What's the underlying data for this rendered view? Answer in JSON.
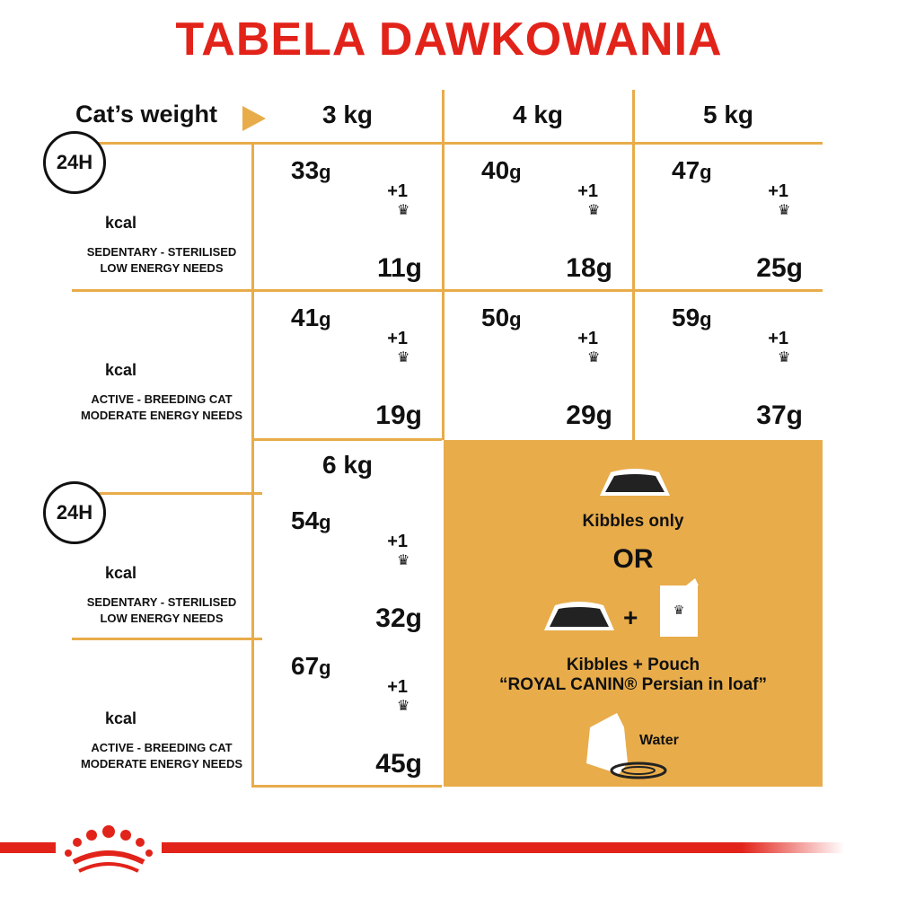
{
  "title": "TABELA DAWKOWANIA",
  "weight_label": "Cat’s weight",
  "weights_top": [
    "3 kg",
    "4 kg",
    "5 kg"
  ],
  "weights_bottom": [
    "6 kg"
  ],
  "activity": {
    "sedentary": {
      "line1": "SEDENTARY - STERILISED",
      "line2": "LOW ENERGY NEEDS",
      "kcal": "kcal",
      "clock": "24H"
    },
    "active": {
      "line1": "ACTIVE - BREEDING CAT",
      "line2": "MODERATE ENERGY NEEDS",
      "kcal": "kcal"
    }
  },
  "plus_one": "+1",
  "unit": "g",
  "rows": [
    {
      "type": "sedentary",
      "cells": [
        {
          "kibbles": "33",
          "mixed": "11g"
        },
        {
          "kibbles": "40",
          "mixed": "18g"
        },
        {
          "kibbles": "47",
          "mixed": "25g"
        }
      ]
    },
    {
      "type": "active",
      "cells": [
        {
          "kibbles": "41",
          "mixed": "19g"
        },
        {
          "kibbles": "50",
          "mixed": "29g"
        },
        {
          "kibbles": "59",
          "mixed": "37g"
        }
      ]
    },
    {
      "type": "sedentary",
      "cells": [
        {
          "kibbles": "54",
          "mixed": "32g"
        }
      ]
    },
    {
      "type": "active",
      "cells": [
        {
          "kibbles": "67",
          "mixed": "45g"
        }
      ]
    }
  ],
  "legend": {
    "kibbles_only": "Kibbles only",
    "or": "OR",
    "plus": "+",
    "kibbles_pouch": "Kibbles + Pouch",
    "pouch_name": "“ROYAL CANIN® Persian in loaf”",
    "water": "Water"
  },
  "colors": {
    "brand_red": "#e2231a",
    "accent": "#e8ac4a",
    "light": "#f8dfb5"
  }
}
